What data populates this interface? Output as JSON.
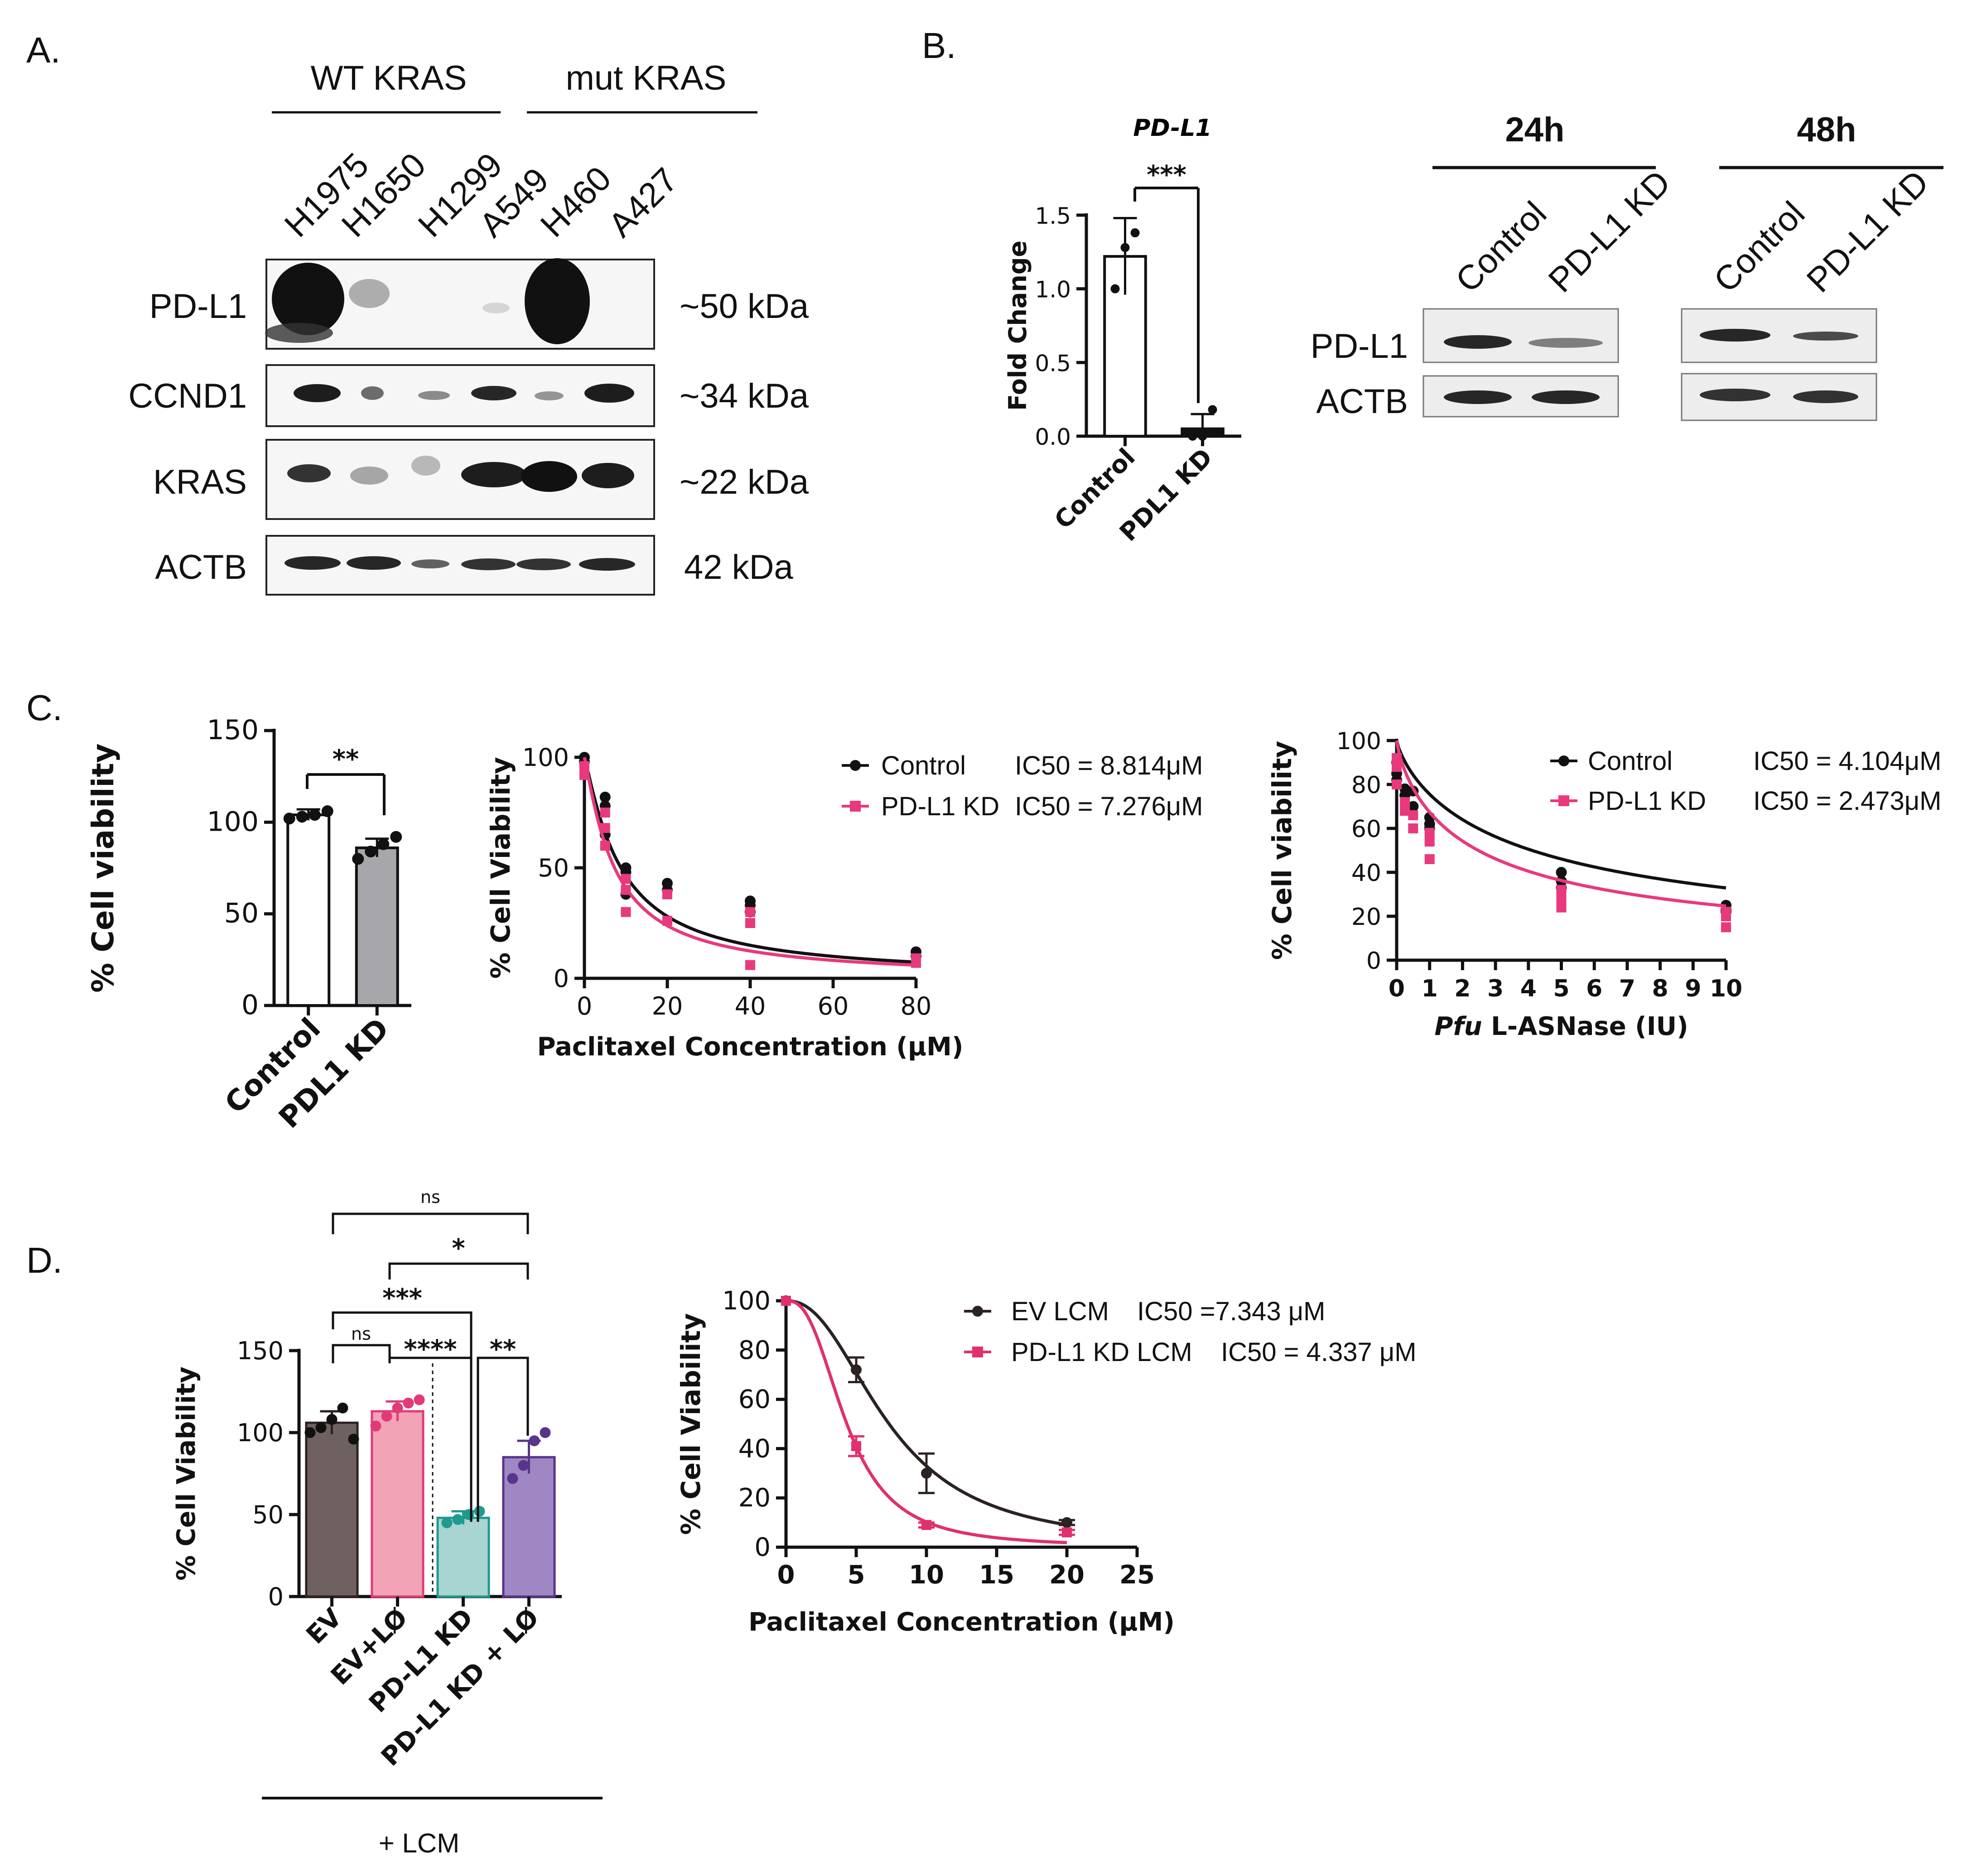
{
  "panels": {
    "A": {
      "letter": "A.",
      "groups": [
        "WT KRAS",
        "mut KRAS"
      ],
      "cell_lines": [
        "H1975",
        "H1650",
        "H1299",
        "A549",
        "H460",
        "A427"
      ],
      "rows": [
        {
          "label": "PD-L1",
          "kda": "~50 kDa",
          "intensities": [
            1.0,
            0.35,
            0.0,
            0.1,
            1.0,
            0.0
          ]
        },
        {
          "label": "CCND1",
          "kda": "~34 kDa",
          "intensities": [
            0.9,
            0.45,
            0.3,
            0.8,
            0.3,
            0.95
          ]
        },
        {
          "label": "KRAS",
          "kda": "~22 kDa",
          "intensities": [
            0.7,
            0.35,
            0.3,
            0.95,
            1.0,
            0.9
          ]
        },
        {
          "label": "ACTB",
          "kda": "42 kDa",
          "intensities": [
            0.85,
            0.85,
            0.6,
            0.8,
            0.8,
            0.85
          ]
        }
      ]
    },
    "B": {
      "letter": "B.",
      "bar_title": "PD-L1",
      "bar_sig": "***",
      "blot_times": [
        "24h",
        "48h"
      ],
      "blot_conditions": [
        "Control",
        "PD-L1 KD"
      ],
      "blot_rows": [
        {
          "label": "PD-L1",
          "intensities": [
            0.95,
            0.5,
            0.9,
            0.75
          ]
        },
        {
          "label": "ACTB",
          "intensities": [
            0.9,
            0.9,
            0.85,
            0.85
          ]
        }
      ]
    },
    "C": {
      "letter": "C.",
      "bar_sig": "**",
      "legend_paclitaxel": [
        {
          "label": "Control",
          "ic50": "IC50 = 8.814μM"
        },
        {
          "label": "PD-L1 KD",
          "ic50": "IC50 = 7.276μM"
        }
      ],
      "legend_asnase": [
        {
          "label": "Control",
          "ic50": "IC50 = 4.104μM"
        },
        {
          "label": "PD-L1 KD",
          "ic50": "IC50 = 2.473μM"
        }
      ]
    },
    "D": {
      "letter": "D.",
      "lcm_label": "+ LCM",
      "sig_labels": [
        "ns",
        "*",
        "***",
        "ns",
        "****",
        "**"
      ],
      "legend": [
        {
          "label": "EV LCM",
          "ic50": "IC50 =7.343 μM"
        },
        {
          "label": "PD-L1 KD LCM",
          "ic50": "IC50 = 4.337 μM"
        }
      ]
    }
  },
  "chart_data": [
    {
      "id": "B-bar",
      "type": "bar",
      "title": "PD-L1",
      "categories": [
        "Control",
        "PDL1 KD"
      ],
      "values": [
        1.22,
        0.05
      ],
      "errors": [
        0.26,
        0.1
      ],
      "points": [
        [
          1.0,
          1.28,
          1.38
        ],
        [
          0.0,
          0.0,
          0.18
        ]
      ],
      "xlabel": "",
      "ylabel": "Fold Change",
      "ylim": [
        0,
        1.5
      ],
      "yticks": [
        0.0,
        0.5,
        1.0,
        1.5
      ],
      "ytick_labels": [
        "0.0",
        "0.5",
        "1.0",
        "1.5"
      ],
      "colors": [
        "#ffffff",
        "#111111"
      ]
    },
    {
      "id": "C-bar",
      "type": "bar",
      "categories": [
        "Control",
        "PDL1 KD"
      ],
      "values": [
        104,
        86
      ],
      "errors": [
        3,
        5
      ],
      "points": [
        [
          102,
          103,
          104,
          106
        ],
        [
          80,
          84,
          88,
          92
        ]
      ],
      "xlabel": "",
      "ylabel": "% Cell viability",
      "ylim": [
        0,
        150
      ],
      "yticks": [
        0,
        50,
        100,
        150
      ],
      "ytick_labels": [
        "0",
        "50",
        "100",
        "150"
      ],
      "colors": [
        "#ffffff",
        "#a7a7ab"
      ]
    },
    {
      "id": "C-paclitaxel",
      "type": "scatter",
      "xlabel": "Paclitaxel Concentration (μM)",
      "ylabel": "% Cell Viability",
      "xlim": [
        0,
        80
      ],
      "ylim": [
        0,
        100
      ],
      "xticks": [
        0,
        20,
        40,
        60,
        80
      ],
      "xtick_labels": [
        "0",
        "20",
        "40",
        "60",
        "80"
      ],
      "yticks": [
        0,
        50,
        100
      ],
      "ytick_labels": [
        "0",
        "50",
        "100"
      ],
      "series": [
        {
          "name": "Control",
          "color": "#111111",
          "marker": "circle",
          "ic50": 8.814,
          "x": [
            0,
            0,
            5,
            5,
            5,
            10,
            10,
            10,
            20,
            20,
            40,
            40,
            40,
            80,
            80
          ],
          "y": [
            100,
            98,
            82,
            78,
            65,
            50,
            48,
            38,
            43,
            40,
            35,
            33,
            30,
            12,
            10
          ]
        },
        {
          "name": "PD-L1 KD",
          "color": "#e8397d",
          "marker": "square",
          "ic50": 7.276,
          "x": [
            0,
            0,
            5,
            5,
            5,
            10,
            10,
            10,
            20,
            20,
            40,
            40,
            40,
            80,
            80
          ],
          "y": [
            96,
            92,
            75,
            68,
            60,
            45,
            40,
            30,
            38,
            26,
            30,
            25,
            6,
            9,
            7
          ]
        }
      ]
    },
    {
      "id": "C-asnase",
      "type": "scatter",
      "xlabel": "Pfu L-ASNase (IU)",
      "ylabel": "% Cell viability",
      "xlim": [
        0,
        10
      ],
      "ylim": [
        0,
        100
      ],
      "xticks": [
        0,
        1,
        2,
        3,
        4,
        5,
        6,
        7,
        8,
        9,
        10
      ],
      "xtick_labels": [
        "0",
        "1",
        "2",
        "3",
        "4",
        "5",
        "6",
        "7",
        "8",
        "9",
        "10"
      ],
      "yticks": [
        0,
        20,
        40,
        60,
        80,
        100
      ],
      "ytick_labels": [
        "0",
        "20",
        "40",
        "60",
        "80",
        "100"
      ],
      "series": [
        {
          "name": "Control",
          "color": "#111111",
          "marker": "circle",
          "ic50": 4.104,
          "x": [
            0,
            0,
            0,
            0.25,
            0.25,
            0.5,
            0.5,
            1,
            1,
            1,
            5,
            5,
            5,
            10,
            10,
            10
          ],
          "y": [
            90,
            85,
            82,
            78,
            75,
            77,
            70,
            65,
            62,
            60,
            40,
            36,
            33,
            25,
            23,
            22
          ]
        },
        {
          "name": "PD-L1 KD",
          "color": "#e8397d",
          "marker": "square",
          "ic50": 2.473,
          "x": [
            0,
            0,
            0,
            0.25,
            0.25,
            0.5,
            0.5,
            1,
            1,
            1,
            5,
            5,
            5,
            10,
            10,
            10
          ],
          "y": [
            92,
            88,
            80,
            72,
            68,
            66,
            60,
            58,
            54,
            46,
            32,
            28,
            24,
            22,
            20,
            15
          ]
        }
      ]
    },
    {
      "id": "D-bar",
      "type": "bar",
      "categories": [
        "EV",
        "EV+LØ",
        "PD-L1 KD",
        "PD-L1 KD + LØ"
      ],
      "values": [
        106,
        113,
        48,
        85
      ],
      "errors": [
        7,
        6,
        4,
        10
      ],
      "points": [
        [
          100,
          103,
          108,
          115,
          96
        ],
        [
          104,
          110,
          115,
          118,
          120
        ],
        [
          45,
          47,
          50,
          52
        ],
        [
          72,
          80,
          95,
          100
        ]
      ],
      "xlabel": "",
      "ylabel": "% Cell Viability",
      "ylim": [
        0,
        150
      ],
      "yticks": [
        0,
        50,
        100,
        150
      ],
      "ytick_labels": [
        "0",
        "50",
        "100",
        "150"
      ],
      "colors": [
        "#6f6160",
        "#f2a3b6",
        "#a8d4d2",
        "#9f87c3"
      ],
      "edge_colors": [
        "#2b2222",
        "#e23a78",
        "#1f9a8f",
        "#58348c"
      ],
      "point_colors": [
        "#111111",
        "#e23a78",
        "#1f9a8f",
        "#58348c"
      ]
    },
    {
      "id": "D-curve",
      "type": "line",
      "xlabel": "Paclitaxel Concentration (μM)",
      "ylabel": "% Cell Viability",
      "xlim": [
        0,
        25
      ],
      "ylim": [
        0,
        100
      ],
      "xticks": [
        0,
        5,
        10,
        15,
        20,
        25
      ],
      "xtick_labels": [
        "0",
        "5",
        "10",
        "15",
        "20",
        "25"
      ],
      "yticks": [
        0,
        20,
        40,
        60,
        80,
        100
      ],
      "ytick_labels": [
        "0",
        "20",
        "40",
        "60",
        "80",
        "100"
      ],
      "series": [
        {
          "name": "EV LCM",
          "color": "#2b2222",
          "marker": "circle",
          "ic50": 7.343,
          "x": [
            0,
            5,
            10,
            20
          ],
          "y": [
            100,
            72,
            30,
            10
          ],
          "err": [
            0,
            5,
            8,
            1
          ]
        },
        {
          "name": "PD-L1 KD LCM",
          "color": "#e0306e",
          "marker": "square",
          "ic50": 4.337,
          "x": [
            0,
            5,
            10,
            20
          ],
          "y": [
            100,
            41,
            9,
            6
          ],
          "err": [
            0,
            4,
            1,
            1
          ]
        }
      ]
    }
  ]
}
